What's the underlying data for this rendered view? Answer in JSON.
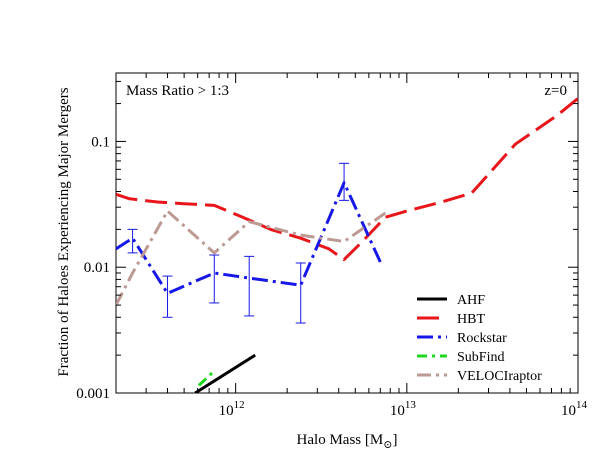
{
  "chart_data": {
    "type": "line",
    "xlabel": "Halo Mass [M",
    "xlabel_sub": "⊙",
    "xlabel_end": "]",
    "ylabel": "Fraction of Haloes Experiencing Major Mergers",
    "x_scale": "log",
    "y_scale": "log",
    "xlim": [
      200000000000.0,
      100000000000000.0
    ],
    "ylim": [
      0.001,
      0.35
    ],
    "x_ticks": [
      {
        "value": 1000000000000.0,
        "base": "10",
        "exp": "12"
      },
      {
        "value": 10000000000000.0,
        "base": "10",
        "exp": "13"
      },
      {
        "value": 100000000000000.0,
        "base": "10",
        "exp": "14"
      }
    ],
    "y_ticks": [
      {
        "value": 0.001,
        "label": "0.001"
      },
      {
        "value": 0.01,
        "label": "0.01"
      },
      {
        "value": 0.1,
        "label": "0.1"
      }
    ],
    "annotations": {
      "left": "Mass Ratio > 1:3",
      "right": "z=0"
    },
    "legend_position": "bottom-right",
    "series": [
      {
        "name": "AHF",
        "color": "#000000",
        "dash": "",
        "x": [
          580000000000.0,
          1300000000000.0
        ],
        "y": [
          0.001,
          0.002
        ]
      },
      {
        "name": "HBT",
        "color": "#e8161b",
        "dash": "22,8",
        "x": [
          200000000000.0,
          240000000000.0,
          350000000000.0,
          500000000000.0,
          750000000000.0,
          1100000000000.0,
          1600000000000.0,
          2400000000000.0,
          3500000000000.0,
          4300000000000.0,
          5500000000000.0,
          7500000000000.0,
          10000000000000.0,
          16000000000000.0,
          24000000000000.0,
          43000000000000.0,
          75000000000000.0,
          100000000000000.0
        ],
        "y": [
          0.038,
          0.035,
          0.033,
          0.032,
          0.031,
          0.025,
          0.02,
          0.017,
          0.014,
          0.0115,
          0.016,
          0.025,
          0.028,
          0.033,
          0.039,
          0.095,
          0.16,
          0.22
        ]
      },
      {
        "name": "Rockstar",
        "color": "#1717e8",
        "dash": "16,5,3,5",
        "x": [
          200000000000.0,
          250000000000.0,
          400000000000.0,
          750000000000.0,
          1200000000000.0,
          2400000000000.0,
          4300000000000.0,
          7000000000000.0
        ],
        "y": [
          0.014,
          0.017,
          0.0062,
          0.009,
          0.0082,
          0.0072,
          0.047,
          0.011
        ]
      },
      {
        "name": "SubFind",
        "color": "#1ed81e",
        "dash": "10,5,3,5",
        "x": [
          610000000000.0,
          750000000000.0
        ],
        "y": [
          0.00115,
          0.0015
        ]
      },
      {
        "name": "VELOCIraptor",
        "color": "#bc9a93",
        "dash": "14,5,3,5",
        "x": [
          200000000000.0,
          250000000000.0,
          400000000000.0,
          750000000000.0,
          1200000000000.0,
          2400000000000.0,
          4300000000000.0,
          7500000000000.0
        ],
        "y": [
          0.005,
          0.009,
          0.028,
          0.013,
          0.023,
          0.018,
          0.016,
          0.027
        ]
      }
    ],
    "error_bars": {
      "series": "Rockstar",
      "color": "#1717e8",
      "points": [
        {
          "x": 250000000000.0,
          "y": 0.017,
          "lo": 0.013,
          "hi": 0.02
        },
        {
          "x": 400000000000.0,
          "y": 0.0062,
          "lo": 0.004,
          "hi": 0.0085
        },
        {
          "x": 750000000000.0,
          "y": 0.009,
          "lo": 0.0052,
          "hi": 0.0125
        },
        {
          "x": 1200000000000.0,
          "y": 0.0082,
          "lo": 0.0041,
          "hi": 0.0122
        },
        {
          "x": 2400000000000.0,
          "y": 0.0072,
          "lo": 0.0036,
          "hi": 0.0108
        },
        {
          "x": 4300000000000.0,
          "y": 0.047,
          "lo": 0.034,
          "hi": 0.067
        }
      ]
    }
  }
}
